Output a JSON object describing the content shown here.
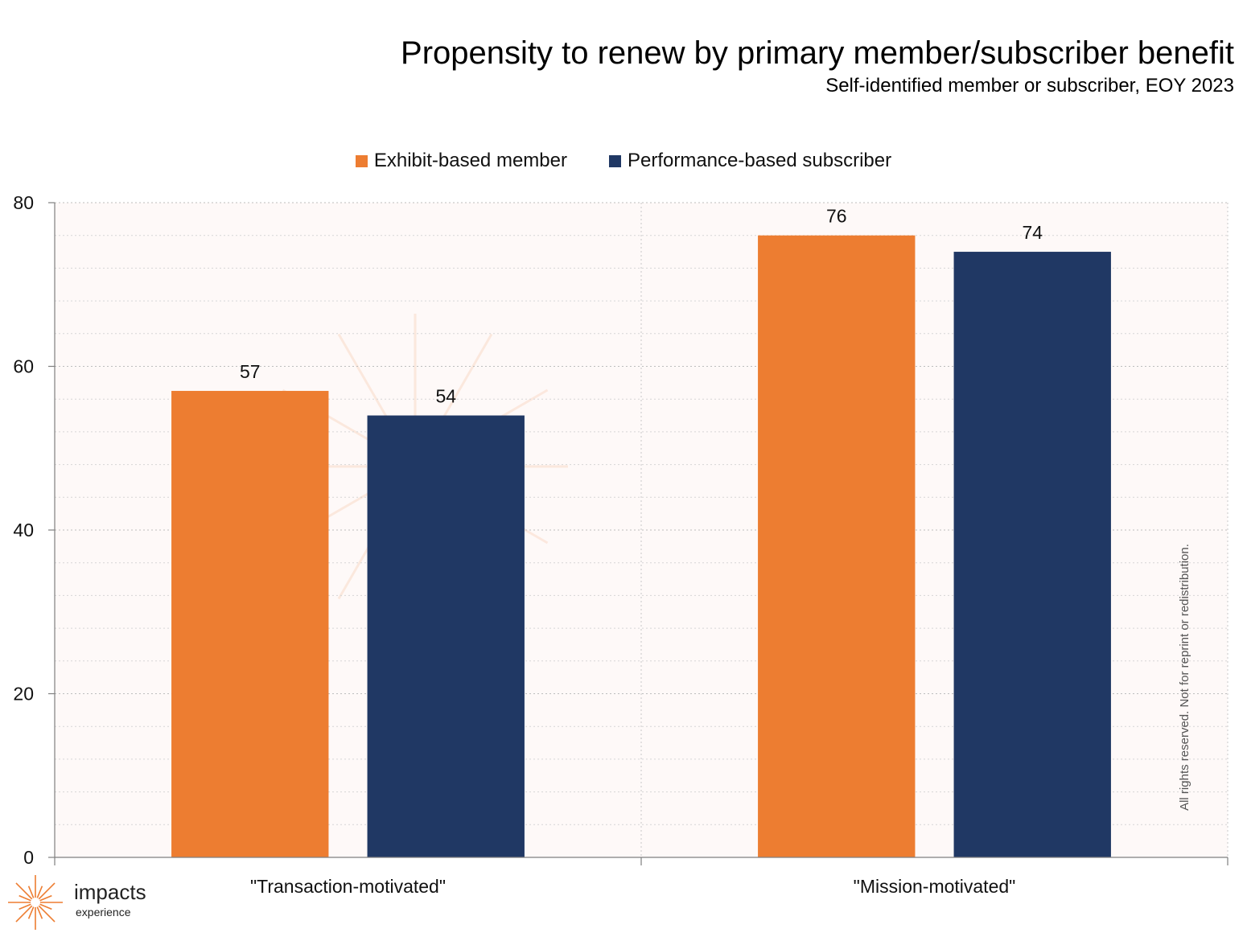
{
  "chart_data": {
    "type": "bar",
    "title": "Propensity to renew by primary member/subscriber benefit",
    "subtitle": "Self-identified member or subscriber, EOY 2023",
    "categories": [
      "\"Transaction-motivated\"",
      "\"Mission-motivated\""
    ],
    "series": [
      {
        "name": "Exhibit-based member",
        "values": [
          57,
          76
        ],
        "color": "#ED7D31"
      },
      {
        "name": "Performance-based subscriber",
        "values": [
          54,
          74
        ],
        "color": "#203864"
      }
    ],
    "ylim": [
      0,
      80
    ],
    "yticks": [
      0,
      20,
      40,
      60,
      80
    ],
    "xlabel": "",
    "ylabel": "",
    "grid": true,
    "legend_position": "top-center",
    "plot_background": "#FEF9F8"
  },
  "footer": {
    "copyright": "All rights reserved. Not for reprint or redistribution.",
    "logo_name": "impacts",
    "logo_sub": "experience",
    "logo_color": "#ED7D31"
  }
}
